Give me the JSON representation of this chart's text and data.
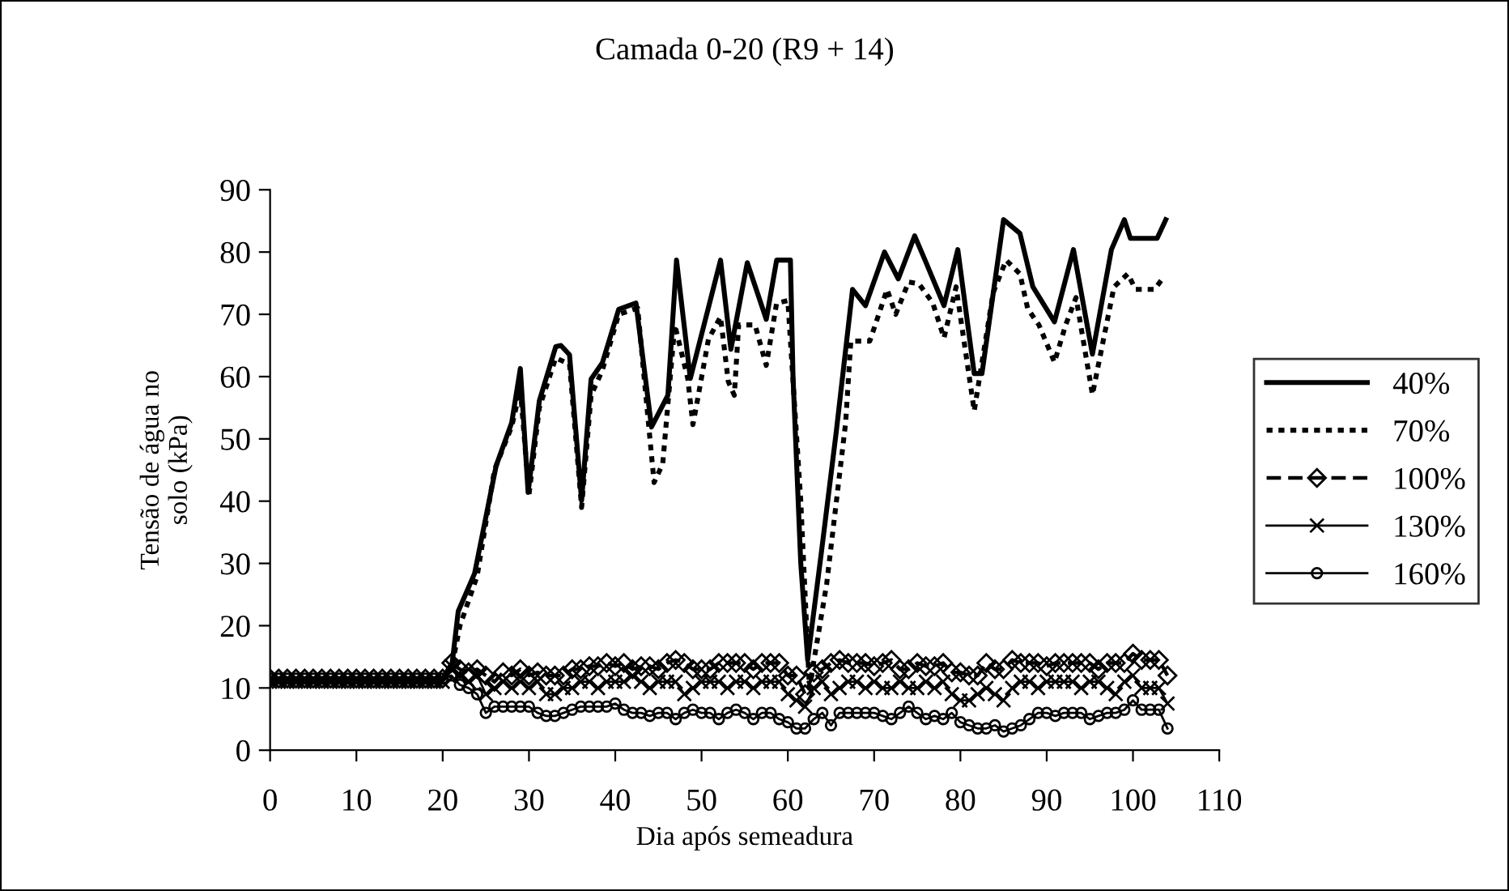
{
  "chart_data": {
    "type": "line",
    "title": "Camada 0-20 (R9 + 14)",
    "xlabel": "Dia após semeadura",
    "ylabel": "Tensão de água no\nsolo (kPa)",
    "xlim": [
      0,
      110
    ],
    "xticks": [
      0,
      10,
      20,
      30,
      40,
      50,
      60,
      70,
      80,
      90,
      100,
      110
    ],
    "ylim": [
      0,
      90
    ],
    "yticks": [
      0,
      10,
      20,
      30,
      40,
      50,
      60,
      70,
      80,
      90
    ],
    "grid": false,
    "legend": "right",
    "series": [
      {
        "name": "40%",
        "color": "#000000",
        "line_style": "solid",
        "marker": "none",
        "x": [
          0,
          20,
          21.1,
          21.8,
          23.7,
          26.2,
          28.0,
          29.0,
          29.9,
          31.2,
          33.1,
          33.7,
          34.7,
          36.1,
          37.2,
          38.5,
          40.4,
          42.4,
          43.2,
          44.2,
          46.1,
          47.1,
          48.7,
          52.2,
          53.4,
          55.3,
          57.5,
          58.7,
          60.3,
          60.6,
          61.5,
          62.3,
          63.9,
          65.6,
          67.5,
          69.0,
          71.2,
          72.8,
          74.7,
          75.9,
          78.1,
          79.7,
          81.6,
          82.5,
          85.0,
          86.9,
          88.4,
          90.9,
          93.1,
          95.3,
          97.5,
          99.0,
          99.7,
          102.8,
          103.8
        ],
        "values": [
          11.5,
          11.5,
          14,
          22.3,
          28.4,
          45.7,
          52.6,
          61.3,
          41.4,
          56.1,
          64.8,
          65,
          63.5,
          40.1,
          59.6,
          62.2,
          70.8,
          71.8,
          63,
          51.9,
          57,
          78.7,
          59.7,
          78.7,
          64.4,
          78.3,
          69.2,
          78.7,
          78.7,
          60,
          30,
          14.5,
          31.9,
          51,
          74,
          71.4,
          80,
          75.7,
          82.6,
          78.7,
          71.4,
          80.4,
          60.5,
          60.5,
          85.2,
          83,
          74.4,
          68.8,
          80.4,
          63.6,
          80.4,
          85.2,
          82.2,
          82.2,
          85.2
        ]
      },
      {
        "name": "70%",
        "color": "#000000",
        "line_style": "dotted",
        "marker": "none",
        "x": [
          0,
          20,
          21,
          22,
          24,
          26,
          28,
          29,
          30,
          31.2,
          33.1,
          34.7,
          36.1,
          37.2,
          38.5,
          40.4,
          42.6,
          43.2,
          44.5,
          45.5,
          46.9,
          48.4,
          49.0,
          49.5,
          50.8,
          52.2,
          53.1,
          53.8,
          54.3,
          56.2,
          57.5,
          58.7,
          60.0,
          61.5,
          62.5,
          64.5,
          66.7,
          67.3,
          69.5,
          71.5,
          72.5,
          74.0,
          75.2,
          76.8,
          78.1,
          79.5,
          81.6,
          83.8,
          85.3,
          86.9,
          87.8,
          89.1,
          90.9,
          92.2,
          93.4,
          95.3,
          97.8,
          99.4,
          100.3,
          102.5,
          103.4
        ],
        "values": [
          11.5,
          11.5,
          13,
          20,
          28,
          45,
          52,
          58,
          41,
          55,
          63,
          62,
          39,
          57,
          61,
          70,
          71,
          62,
          43,
          46,
          68.3,
          59.7,
          52.3,
          56,
          66,
          69.6,
          59.2,
          57,
          68.3,
          68.3,
          61.8,
          71.8,
          72.2,
          40,
          10,
          26.7,
          52.6,
          65.7,
          65.7,
          74,
          70,
          75.2,
          74.9,
          71.8,
          66.2,
          74.4,
          54.5,
          73.5,
          78.7,
          76.5,
          70.9,
          68.3,
          62.3,
          68.3,
          72.7,
          57.1,
          74.4,
          76.5,
          74,
          74,
          75.7
        ]
      },
      {
        "name": "100%",
        "color": "#000000",
        "line_style": "dashed",
        "marker": "diamond",
        "x": [
          0,
          1,
          2,
          3,
          4,
          5,
          6,
          7,
          8,
          9,
          10,
          11,
          12,
          13,
          14,
          15,
          16,
          17,
          18,
          19,
          20,
          21,
          22,
          23,
          24,
          25,
          26,
          27,
          28,
          29,
          30,
          31,
          32,
          33,
          34,
          35,
          36,
          37,
          38,
          39,
          40,
          41,
          42,
          43,
          44,
          45,
          46,
          47,
          48,
          49,
          50,
          51,
          52,
          53,
          54,
          55,
          56,
          57,
          58,
          59,
          60,
          61,
          62,
          63,
          64,
          65,
          66,
          67,
          68,
          69,
          70,
          71,
          72,
          73,
          74,
          75,
          76,
          77,
          78,
          79,
          80,
          81,
          82,
          83,
          84,
          85,
          86,
          87,
          88,
          89,
          90,
          91,
          92,
          93,
          94,
          95,
          96,
          97,
          98,
          99,
          100,
          101,
          102,
          103,
          104
        ],
        "values": [
          11.5,
          11.5,
          11.5,
          11.5,
          11.5,
          11.5,
          11.5,
          11.5,
          11.5,
          11.5,
          11.5,
          11.5,
          11.5,
          11.5,
          11.5,
          11.5,
          11.5,
          11.5,
          11.5,
          11.5,
          11.5,
          14,
          13,
          12.5,
          13,
          12,
          11,
          12.5,
          12,
          13,
          12,
          12.5,
          12,
          12,
          12,
          13,
          13,
          13.5,
          13.5,
          14,
          13.5,
          14,
          13,
          13.5,
          13.5,
          13,
          14,
          14.5,
          14,
          13,
          13,
          13,
          14,
          14,
          14,
          14,
          13,
          14,
          14,
          14,
          12,
          12,
          9,
          12.5,
          13,
          14,
          14.5,
          14,
          14,
          14,
          13.5,
          14,
          14.5,
          13,
          13,
          14,
          13.5,
          13.5,
          14,
          12.5,
          12.5,
          12,
          12,
          14,
          13,
          13,
          14.5,
          14,
          14,
          14,
          13.5,
          14,
          14,
          14,
          14,
          14,
          13,
          14,
          14,
          14,
          15.5,
          14.5,
          14.5,
          14.5,
          12
        ]
      },
      {
        "name": "130%",
        "color": "#000000",
        "line_style": "solid",
        "marker": "cross",
        "x": [
          0,
          1,
          2,
          3,
          4,
          5,
          6,
          7,
          8,
          9,
          10,
          11,
          12,
          13,
          14,
          15,
          16,
          17,
          18,
          19,
          20,
          21,
          22,
          23,
          24,
          25,
          26,
          27,
          28,
          29,
          30,
          31,
          32,
          33,
          34,
          35,
          36,
          37,
          38,
          39,
          40,
          41,
          42,
          43,
          44,
          45,
          46,
          47,
          48,
          49,
          50,
          51,
          52,
          53,
          54,
          55,
          56,
          57,
          58,
          59,
          60,
          61,
          62,
          63,
          64,
          65,
          66,
          67,
          68,
          69,
          70,
          71,
          72,
          73,
          74,
          75,
          76,
          77,
          78,
          79,
          80,
          81,
          82,
          83,
          84,
          85,
          86,
          87,
          88,
          89,
          90,
          91,
          92,
          93,
          94,
          95,
          96,
          97,
          98,
          99,
          100,
          101,
          102,
          103,
          104
        ],
        "values": [
          11,
          11,
          11,
          11,
          11,
          11,
          11,
          11,
          11,
          11,
          11,
          11,
          11,
          11,
          11,
          11,
          11,
          11,
          11,
          11,
          11,
          13.5,
          12,
          11,
          12,
          9,
          10,
          11,
          10,
          11,
          10,
          11,
          9,
          9,
          10,
          10,
          11,
          11,
          10,
          11,
          11,
          11,
          12,
          11,
          10,
          11,
          11,
          11,
          9,
          10,
          11,
          11,
          11,
          10,
          11,
          11,
          10,
          11,
          11,
          11,
          9,
          8,
          7,
          10,
          11,
          9,
          10,
          11,
          11,
          10,
          11,
          10,
          10,
          11,
          10,
          10,
          11,
          10,
          11,
          9,
          8,
          8,
          9,
          10,
          9,
          8,
          10,
          11,
          11,
          10,
          11,
          11,
          11,
          11,
          10,
          11,
          11,
          10,
          9,
          11,
          12,
          10,
          10,
          10,
          7.5
        ]
      },
      {
        "name": "160%",
        "color": "#000000",
        "line_style": "solid",
        "marker": "circle",
        "x": [
          0,
          1,
          2,
          3,
          4,
          5,
          6,
          7,
          8,
          9,
          10,
          11,
          12,
          13,
          14,
          15,
          16,
          17,
          18,
          19,
          20,
          21,
          22,
          23,
          24,
          25,
          26,
          27,
          28,
          29,
          30,
          31,
          32,
          33,
          34,
          35,
          36,
          37,
          38,
          39,
          40,
          41,
          42,
          43,
          44,
          45,
          46,
          47,
          48,
          49,
          50,
          51,
          52,
          53,
          54,
          55,
          56,
          57,
          58,
          59,
          60,
          61,
          62,
          63,
          64,
          65,
          66,
          67,
          68,
          69,
          70,
          71,
          72,
          73,
          74,
          75,
          76,
          77,
          78,
          79,
          80,
          81,
          82,
          83,
          84,
          85,
          86,
          87,
          88,
          89,
          90,
          91,
          92,
          93,
          94,
          95,
          96,
          97,
          98,
          99,
          100,
          101,
          102,
          103,
          104
        ],
        "values": [
          11.5,
          11.5,
          11.5,
          11.5,
          11.5,
          11.5,
          11.5,
          11.5,
          11.5,
          11.5,
          11.5,
          11.5,
          11.5,
          11.5,
          11.5,
          11.5,
          11.5,
          11.5,
          11.5,
          11.5,
          11.5,
          12,
          10.5,
          10,
          9,
          6,
          7,
          7,
          7,
          7,
          7,
          6,
          5.5,
          5.5,
          6,
          6.5,
          7,
          7,
          7,
          7,
          7.5,
          6.5,
          6,
          6,
          5.5,
          6,
          6,
          5,
          6,
          6.5,
          6,
          6,
          5,
          6,
          6.5,
          6,
          5,
          6,
          6,
          5,
          4.5,
          3.5,
          3.5,
          5,
          6,
          4,
          6,
          6,
          6,
          6,
          6,
          5.5,
          5,
          6,
          7,
          6,
          5,
          5.5,
          5,
          6,
          4.5,
          4,
          3.5,
          3.5,
          4,
          3,
          3.5,
          4,
          5,
          6,
          6,
          5.5,
          6,
          6,
          6,
          5,
          5.5,
          6,
          6,
          6.5,
          8,
          6.5,
          6.5,
          6.5,
          3.5
        ]
      }
    ]
  }
}
